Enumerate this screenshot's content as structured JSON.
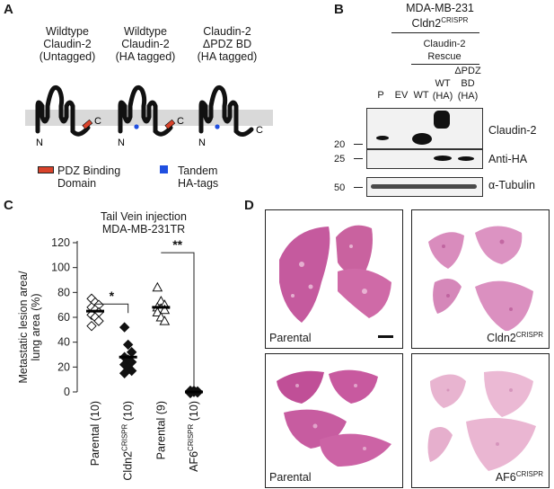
{
  "panel_a": {
    "letter": "A",
    "constructs": [
      {
        "line1": "Wildtype",
        "line2": "Claudin-2",
        "line3": "(Untagged)"
      },
      {
        "line1": "Wildtype",
        "line2": "Claudin-2",
        "line3": "(HA tagged)"
      },
      {
        "line1": "Claudin-2",
        "line2": "ΔPDZ BD",
        "line3": "(HA tagged)"
      }
    ],
    "n_label": "N",
    "c_label": "C",
    "legend": {
      "pdz_line1": "PDZ Binding",
      "pdz_line2": "Domain",
      "ha_line1": "Tandem",
      "ha_line2": "HA-tags",
      "pdz_color": "#d9432b",
      "ha_color": "#1f4fe0"
    }
  },
  "panel_b": {
    "letter": "B",
    "cell_line": "MDA-MB-231",
    "cldn2_label": "Cldn2",
    "cldn2_sup": "CRISPR",
    "rescue_line1": "Claudin-2",
    "rescue_line2": "Rescue",
    "lanes": [
      "P",
      "EV",
      "WT"
    ],
    "wt_ha_line1": "WT",
    "wt_ha_line2": "(HA)",
    "dpdz_line1": "ΔPDZ",
    "dpdz_line2": "BD",
    "dpdz_line3": "(HA)",
    "markers": [
      "20",
      "25",
      "50"
    ],
    "blots": [
      "Claudin-2",
      "Anti-HA",
      "α-Tubulin"
    ]
  },
  "panel_c": {
    "letter": "C",
    "title_line1": "Tail Vein injection",
    "title_line2": "MDA-MB-231TR",
    "ylabel_line1": "Metastatic lesion area/",
    "ylabel_line2": "lung area (%)"
  },
  "chart_data": {
    "type": "scatter",
    "title": "Tail Vein injection MDA-MB-231TR",
    "ylabel": "Metastatic lesion area/ lung area (%)",
    "ylim": [
      0,
      120
    ],
    "yticks": [
      0,
      20,
      40,
      60,
      80,
      100,
      120
    ],
    "categories": [
      "Parental (10)",
      "Cldn2CRISPR (10)",
      "Parental (9)",
      "AF6CRISPR (10)"
    ],
    "category_labels": [
      {
        "main": "Parental (10)",
        "sup": "",
        "tail": ""
      },
      {
        "main": "Cldn2",
        "sup": "CRISPR",
        "tail": " (10)"
      },
      {
        "main": "Parental (9)",
        "sup": "",
        "tail": ""
      },
      {
        "main": "AF6",
        "sup": "CRISPR",
        "tail": " (10)"
      }
    ],
    "series": [
      {
        "category": "Parental (10)",
        "marker": "open-diamond",
        "mean": 65,
        "values": [
          75,
          72,
          70,
          68,
          66,
          64,
          62,
          60,
          57,
          53
        ]
      },
      {
        "category": "Cldn2CRISPR (10)",
        "marker": "filled-diamond",
        "mean": 28,
        "values": [
          52,
          38,
          32,
          28,
          26,
          24,
          22,
          20,
          17,
          15
        ]
      },
      {
        "category": "Parental (9)",
        "marker": "open-triangle",
        "mean": 68,
        "values": [
          84,
          73,
          70,
          68,
          67,
          66,
          64,
          60,
          57
        ]
      },
      {
        "category": "AF6CRISPR (10)",
        "marker": "filled-diamond",
        "mean": 0,
        "values": [
          1,
          1,
          0.5,
          0,
          0,
          0,
          0,
          0,
          -0.5,
          -1
        ]
      }
    ],
    "significance": [
      {
        "between": [
          "Parental (10)",
          "Cldn2CRISPR (10)"
        ],
        "label": "*"
      },
      {
        "between": [
          "Parental (9)",
          "AF6CRISPR (10)"
        ],
        "label": "**"
      }
    ]
  },
  "panel_d": {
    "letter": "D",
    "images": [
      {
        "label": "Parental",
        "sup": ""
      },
      {
        "label": "Cldn2",
        "sup": "CRISPR"
      },
      {
        "label": "Parental",
        "sup": ""
      },
      {
        "label": "AF6",
        "sup": "CRISPR"
      }
    ]
  }
}
